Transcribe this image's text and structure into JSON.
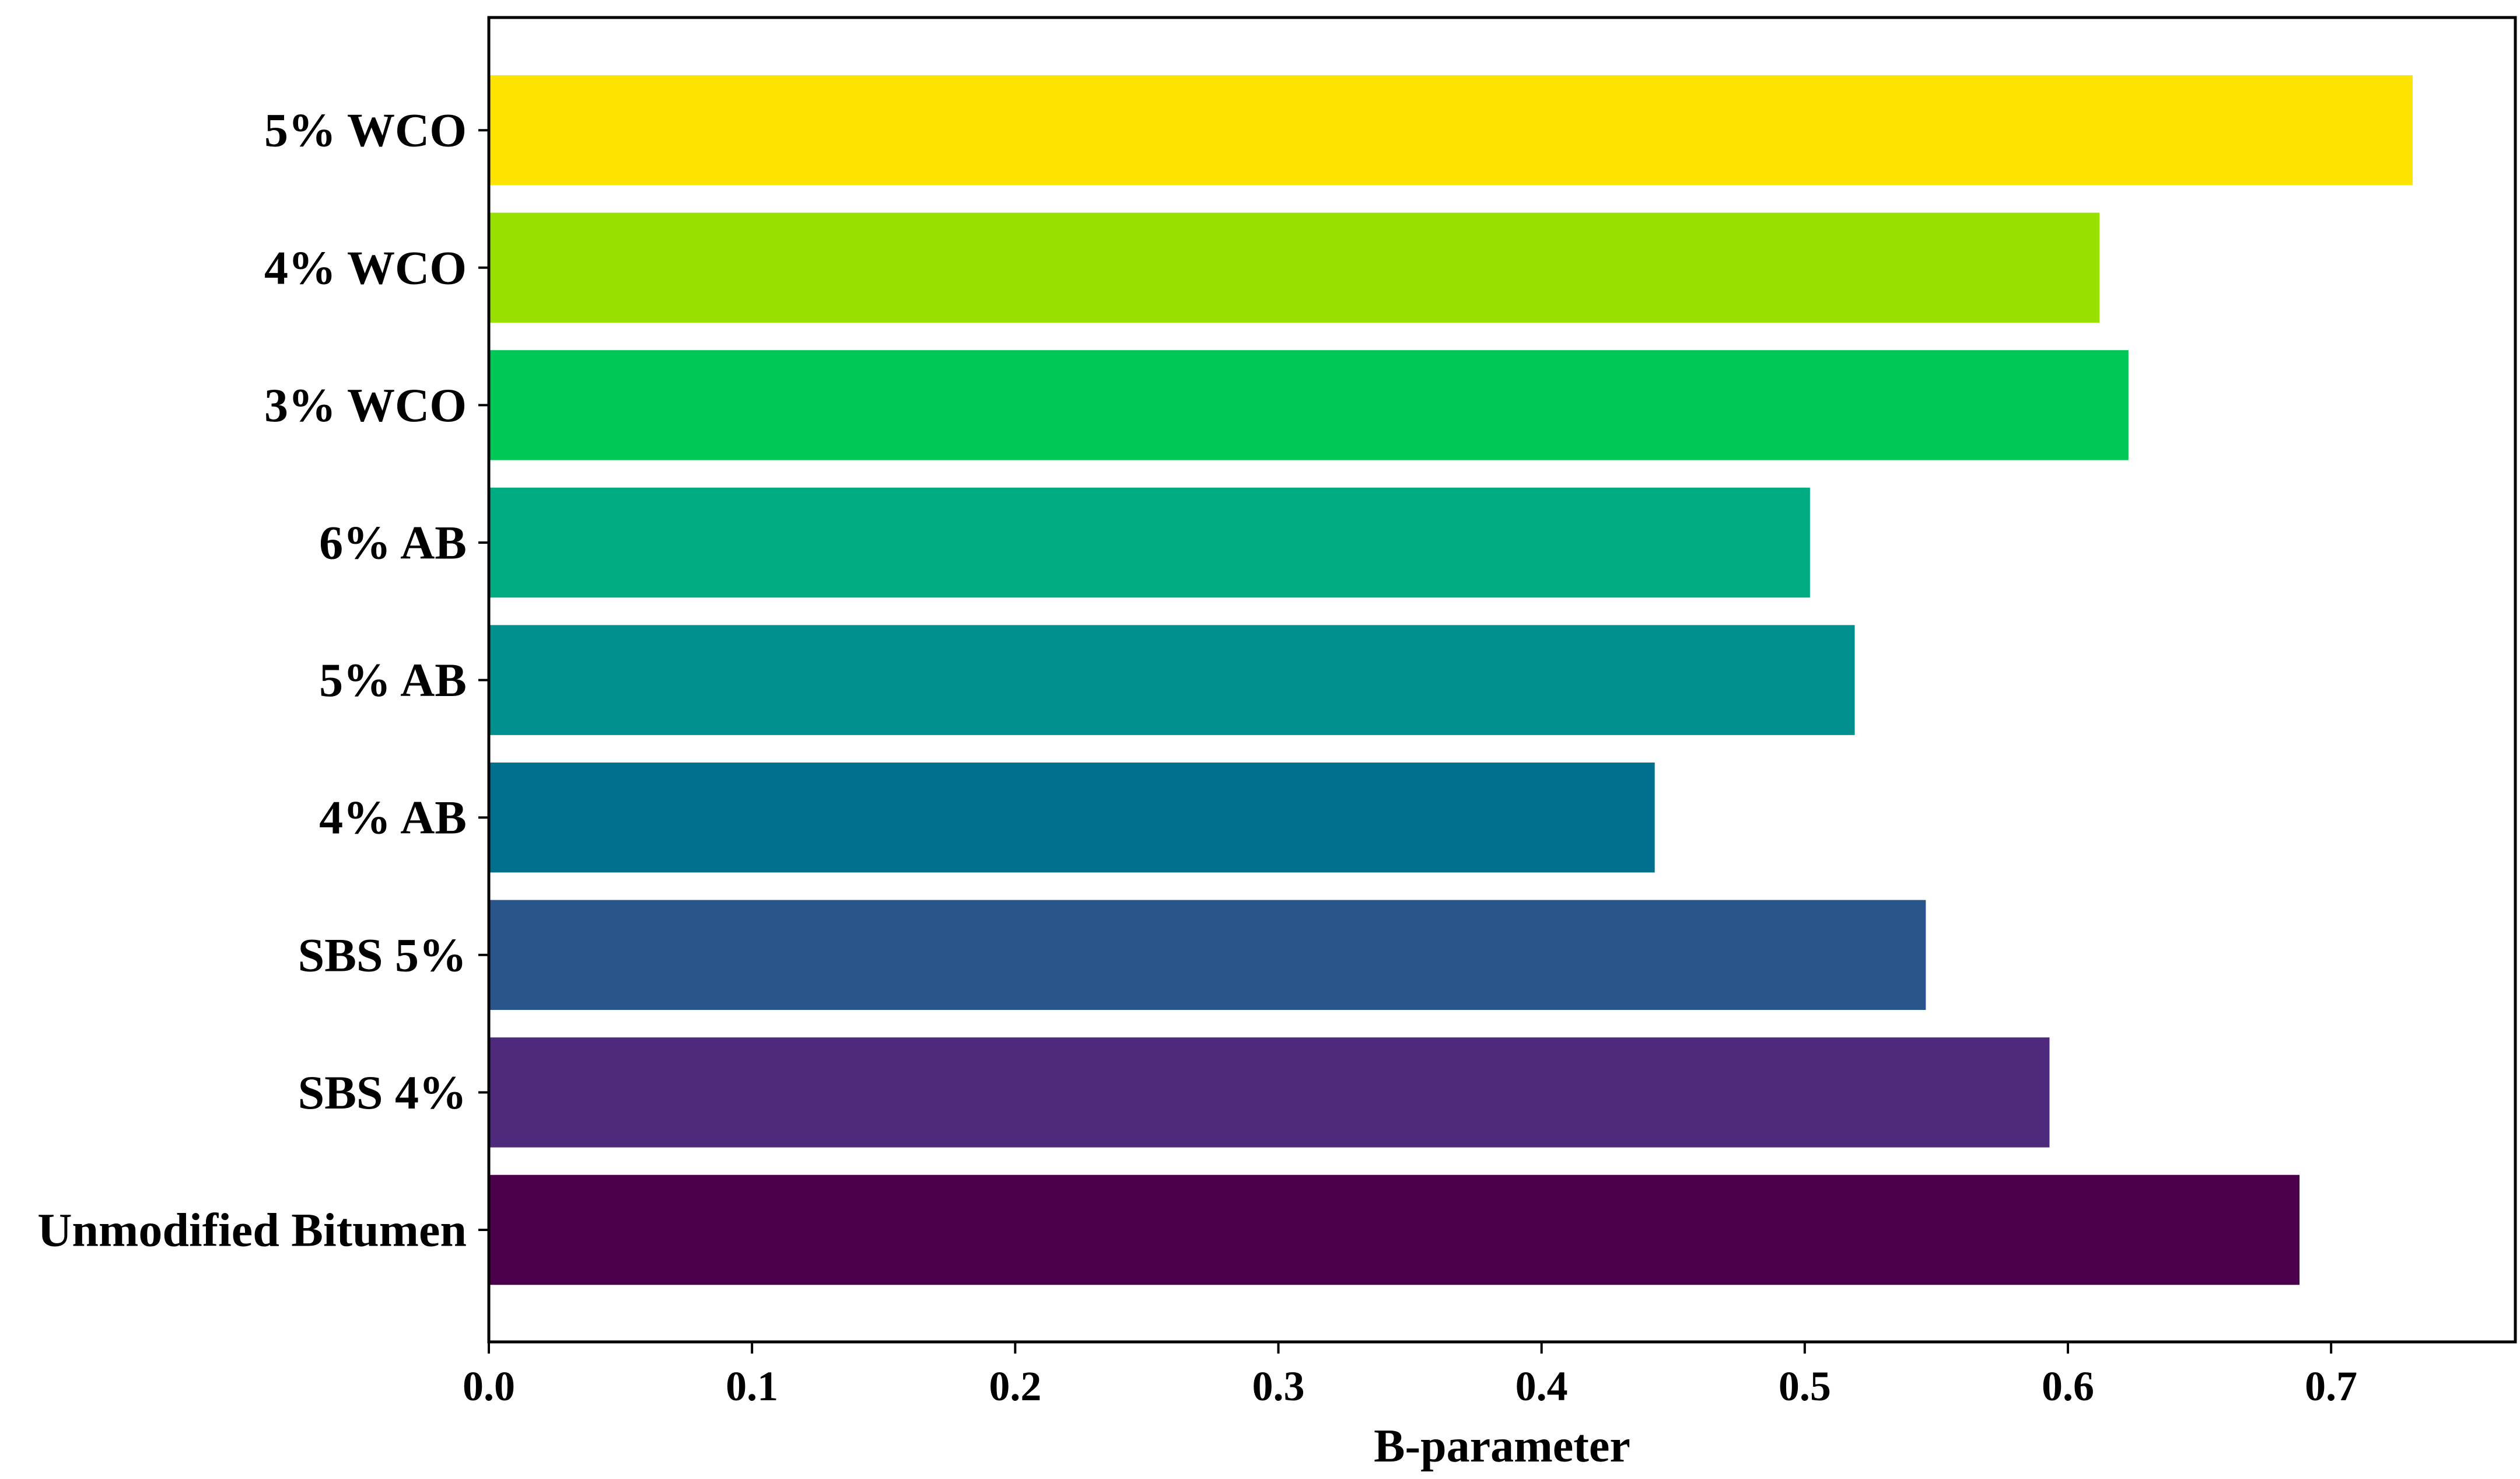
{
  "chart_data": {
    "type": "bar",
    "orientation": "horizontal",
    "categories": [
      "Unmodified Bitumen",
      "SBS 4%",
      "SBS 5%",
      "4% AB",
      "5% AB",
      "6% AB",
      "3% WCO",
      "4% WCO",
      "5% WCO"
    ],
    "values": [
      0.688,
      0.593,
      0.546,
      0.443,
      0.519,
      0.502,
      0.623,
      0.612,
      0.731
    ],
    "colors": [
      "#4b004b",
      "#4e297c",
      "#29548c",
      "#00708e",
      "#008f8d",
      "#00ab82",
      "#00c857",
      "#97e000",
      "#fde400"
    ],
    "title": "",
    "xlabel": "B-parameter",
    "ylabel": "",
    "xlim": [
      0,
      0.77
    ],
    "xticks": [
      0.0,
      0.1,
      0.2,
      0.3,
      0.4,
      0.5,
      0.6,
      0.7
    ],
    "xtick_labels": [
      "0.0",
      "0.1",
      "0.2",
      "0.3",
      "0.4",
      "0.5",
      "0.6",
      "0.7"
    ],
    "grid": false,
    "legend": "none"
  }
}
